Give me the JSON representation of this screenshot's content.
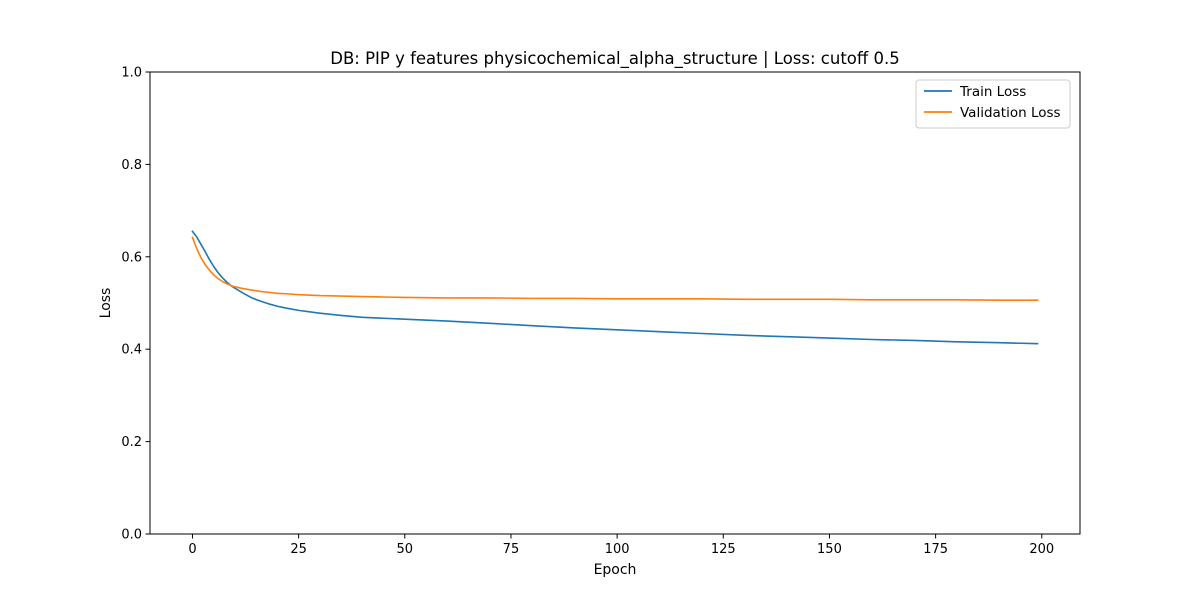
{
  "chart_data": {
    "type": "line",
    "title": "DB: PIP y features physicochemical_alpha_structure | Loss: cutoff 0.5",
    "xlabel": "Epoch",
    "ylabel": "Loss",
    "xlim": [
      -10,
      209
    ],
    "ylim": [
      0,
      1
    ],
    "xticks": [
      0,
      25,
      50,
      75,
      100,
      125,
      150,
      175,
      200
    ],
    "yticks": [
      0.0,
      0.2,
      0.4,
      0.6,
      0.8,
      1.0
    ],
    "xtick_labels": [
      "0",
      "25",
      "50",
      "75",
      "100",
      "125",
      "150",
      "175",
      "200"
    ],
    "ytick_labels": [
      "0.0",
      "0.2",
      "0.4",
      "0.6",
      "0.8",
      "1.0"
    ],
    "grid": false,
    "legend_position": "upper-right",
    "series": [
      {
        "name": "Train Loss",
        "color": "#1f77b4",
        "x": [
          0,
          1,
          2,
          3,
          4,
          5,
          6,
          7,
          8,
          9,
          10,
          12,
          14,
          16,
          18,
          20,
          22,
          25,
          30,
          35,
          40,
          45,
          50,
          60,
          70,
          80,
          90,
          100,
          110,
          120,
          130,
          140,
          150,
          160,
          170,
          180,
          190,
          199
        ],
        "values": [
          0.655,
          0.643,
          0.627,
          0.611,
          0.594,
          0.579,
          0.566,
          0.555,
          0.546,
          0.538,
          0.532,
          0.521,
          0.511,
          0.504,
          0.498,
          0.493,
          0.489,
          0.484,
          0.478,
          0.473,
          0.469,
          0.467,
          0.465,
          0.461,
          0.456,
          0.451,
          0.446,
          0.442,
          0.438,
          0.434,
          0.43,
          0.427,
          0.424,
          0.421,
          0.419,
          0.416,
          0.414,
          0.412
        ]
      },
      {
        "name": "Validation Loss",
        "color": "#ff7f0e",
        "x": [
          0,
          1,
          2,
          3,
          4,
          5,
          6,
          7,
          8,
          9,
          10,
          12,
          14,
          16,
          18,
          20,
          22,
          25,
          30,
          35,
          40,
          45,
          50,
          60,
          70,
          80,
          90,
          100,
          110,
          120,
          130,
          140,
          150,
          160,
          170,
          180,
          190,
          199
        ],
        "values": [
          0.642,
          0.618,
          0.598,
          0.583,
          0.571,
          0.561,
          0.553,
          0.547,
          0.542,
          0.538,
          0.535,
          0.531,
          0.528,
          0.525,
          0.523,
          0.521,
          0.52,
          0.518,
          0.516,
          0.515,
          0.514,
          0.513,
          0.512,
          0.511,
          0.511,
          0.51,
          0.51,
          0.509,
          0.509,
          0.509,
          0.508,
          0.508,
          0.508,
          0.507,
          0.507,
          0.507,
          0.506,
          0.506
        ]
      }
    ]
  }
}
